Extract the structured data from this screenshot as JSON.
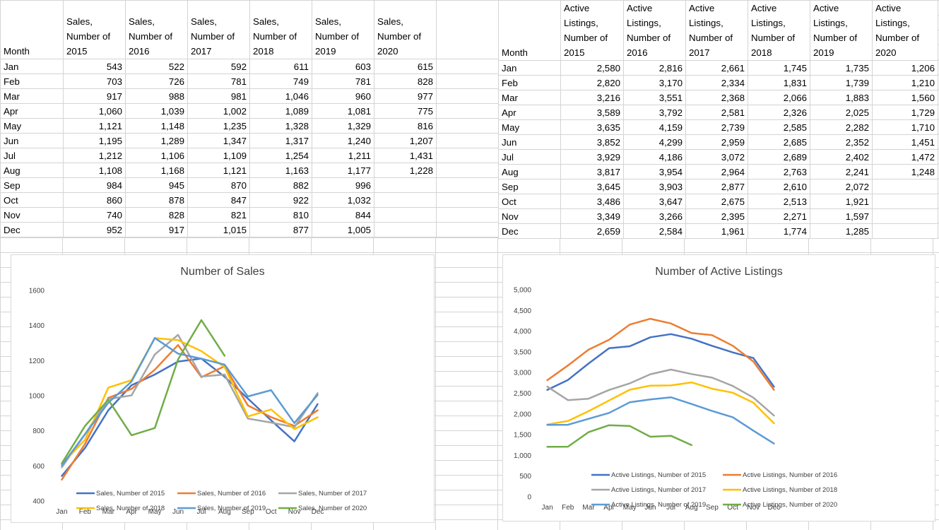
{
  "sales_table": {
    "headers": [
      "Month",
      "Sales, Number of 2015",
      "Sales, Number of 2016",
      "Sales, Number of 2017",
      "Sales, Number of 2018",
      "Sales, Number of 2019",
      "Sales, Number of 2020",
      ""
    ],
    "rows": [
      [
        "Jan",
        "543",
        "522",
        "592",
        "611",
        "603",
        "615",
        ""
      ],
      [
        "Feb",
        "703",
        "726",
        "781",
        "749",
        "781",
        "828",
        ""
      ],
      [
        "Mar",
        "917",
        "988",
        "981",
        "1,046",
        "960",
        "977",
        ""
      ],
      [
        "Apr",
        "1,060",
        "1,039",
        "1,002",
        "1,089",
        "1,081",
        "775",
        ""
      ],
      [
        "May",
        "1,121",
        "1,148",
        "1,235",
        "1,328",
        "1,329",
        "816",
        ""
      ],
      [
        "Jun",
        "1,195",
        "1,289",
        "1,347",
        "1,317",
        "1,240",
        "1,207",
        ""
      ],
      [
        "Jul",
        "1,212",
        "1,106",
        "1,109",
        "1,254",
        "1,211",
        "1,431",
        ""
      ],
      [
        "Aug",
        "1,108",
        "1,168",
        "1,121",
        "1,163",
        "1,177",
        "1,228",
        ""
      ],
      [
        "Sep",
        "984",
        "945",
        "870",
        "882",
        "996",
        "",
        ""
      ],
      [
        "Oct",
        "860",
        "878",
        "847",
        "922",
        "1,032",
        "",
        ""
      ],
      [
        "Nov",
        "740",
        "828",
        "821",
        "810",
        "844",
        "",
        ""
      ],
      [
        "Dec",
        "952",
        "917",
        "1,015",
        "877",
        "1,005",
        "",
        ""
      ]
    ]
  },
  "listings_table": {
    "headers": [
      "Month",
      "Active Listings, Number of 2015",
      "Active Listings, Number of 2016",
      "Active Listings, Number of 2017",
      "Active Listings, Number of 2018",
      "Active Listings, Number of 2019",
      "Active Listings, Number of 2020"
    ],
    "rows": [
      [
        "Jan",
        "2,580",
        "2,816",
        "2,661",
        "1,745",
        "1,735",
        "1,206"
      ],
      [
        "Feb",
        "2,820",
        "3,170",
        "2,334",
        "1,831",
        "1,739",
        "1,210"
      ],
      [
        "Mar",
        "3,216",
        "3,551",
        "2,368",
        "2,066",
        "1,883",
        "1,560"
      ],
      [
        "Apr",
        "3,589",
        "3,792",
        "2,581",
        "2,326",
        "2,025",
        "1,729"
      ],
      [
        "May",
        "3,635",
        "4,159",
        "2,739",
        "2,585",
        "2,282",
        "1,710"
      ],
      [
        "Jun",
        "3,852",
        "4,299",
        "2,959",
        "2,685",
        "2,352",
        "1,451"
      ],
      [
        "Jul",
        "3,929",
        "4,186",
        "3,072",
        "2,689",
        "2,402",
        "1,472"
      ],
      [
        "Aug",
        "3,817",
        "3,954",
        "2,964",
        "2,763",
        "2,241",
        "1,248"
      ],
      [
        "Sep",
        "3,645",
        "3,903",
        "2,877",
        "2,610",
        "2,072",
        ""
      ],
      [
        "Oct",
        "3,486",
        "3,647",
        "2,675",
        "2,513",
        "1,921",
        ""
      ],
      [
        "Nov",
        "3,349",
        "3,266",
        "2,395",
        "2,271",
        "1,597",
        ""
      ],
      [
        "Dec",
        "2,659",
        "2,584",
        "1,961",
        "1,774",
        "1,285",
        ""
      ]
    ]
  },
  "colors": {
    "2015": "#4472c4",
    "2016": "#ed7d31",
    "2017": "#a5a5a5",
    "2018": "#ffc000",
    "2019": "#5b9bd5",
    "2020": "#70ad47"
  },
  "chart_data": [
    {
      "type": "line",
      "title": "Number of Sales",
      "categories": [
        "Jan",
        "Feb",
        "Mar",
        "Apr",
        "May",
        "Jun",
        "Jul",
        "Aug",
        "Sep",
        "Oct",
        "Nov",
        "Dec"
      ],
      "ylim": [
        400,
        1600
      ],
      "yticks": [
        "400",
        "600",
        "800",
        "1000",
        "1200",
        "1400",
        "1600"
      ],
      "ytick_values": [
        400,
        600,
        800,
        1000,
        1200,
        1400,
        1600
      ],
      "legend": "bottom",
      "grid": false,
      "series": [
        {
          "name": "Sales, Number of 2015",
          "color": "#4472c4",
          "values": [
            543,
            703,
            917,
            1060,
            1121,
            1195,
            1212,
            1108,
            984,
            860,
            740,
            952
          ]
        },
        {
          "name": "Sales, Number of 2016",
          "color": "#ed7d31",
          "values": [
            522,
            726,
            988,
            1039,
            1148,
            1289,
            1106,
            1168,
            945,
            878,
            828,
            917
          ]
        },
        {
          "name": "Sales, Number of 2017",
          "color": "#a5a5a5",
          "values": [
            592,
            781,
            981,
            1002,
            1235,
            1347,
            1109,
            1121,
            870,
            847,
            821,
            1015
          ]
        },
        {
          "name": "Sales, Number of 2018",
          "color": "#ffc000",
          "values": [
            611,
            749,
            1046,
            1089,
            1328,
            1317,
            1254,
            1163,
            882,
            922,
            810,
            877
          ]
        },
        {
          "name": "Sales, Number of 2019",
          "color": "#5b9bd5",
          "values": [
            603,
            781,
            960,
            1081,
            1329,
            1240,
            1211,
            1177,
            996,
            1032,
            844,
            1005
          ]
        },
        {
          "name": "Sales, Number of 2020",
          "color": "#70ad47",
          "values": [
            615,
            828,
            977,
            775,
            816,
            1207,
            1431,
            1228,
            null,
            null,
            null,
            null
          ]
        }
      ]
    },
    {
      "type": "line",
      "title": "Number of Active Listings",
      "categories": [
        "Jan",
        "Feb",
        "Mar",
        "Apr",
        "May",
        "Jun",
        "Jul",
        "Aug",
        "Sep",
        "Oct",
        "Nov",
        "Dec"
      ],
      "ylim": [
        0,
        5000
      ],
      "yticks": [
        "0",
        "500",
        "1,000",
        "1,500",
        "2,000",
        "2,500",
        "3,000",
        "3,500",
        "4,000",
        "4,500",
        "5,000"
      ],
      "ytick_values": [
        0,
        500,
        1000,
        1500,
        2000,
        2500,
        3000,
        3500,
        4000,
        4500,
        5000
      ],
      "legend": "bottom-right",
      "grid": false,
      "series": [
        {
          "name": "Active Listings, Number of 2015",
          "color": "#4472c4",
          "values": [
            2580,
            2820,
            3216,
            3589,
            3635,
            3852,
            3929,
            3817,
            3645,
            3486,
            3349,
            2659
          ]
        },
        {
          "name": "Active Listings, Number of 2016",
          "color": "#ed7d31",
          "values": [
            2816,
            3170,
            3551,
            3792,
            4159,
            4299,
            4186,
            3954,
            3903,
            3647,
            3266,
            2584
          ]
        },
        {
          "name": "Active Listings, Number of 2017",
          "color": "#a5a5a5",
          "values": [
            2661,
            2334,
            2368,
            2581,
            2739,
            2959,
            3072,
            2964,
            2877,
            2675,
            2395,
            1961
          ]
        },
        {
          "name": "Active Listings, Number of 2018",
          "color": "#ffc000",
          "values": [
            1745,
            1831,
            2066,
            2326,
            2585,
            2685,
            2689,
            2763,
            2610,
            2513,
            2271,
            1774
          ]
        },
        {
          "name": "Active Listings, Number of 2019",
          "color": "#5b9bd5",
          "values": [
            1735,
            1739,
            1883,
            2025,
            2282,
            2352,
            2402,
            2241,
            2072,
            1921,
            1597,
            1285
          ]
        },
        {
          "name": "Active Listings, Number of 2020",
          "color": "#70ad47",
          "values": [
            1206,
            1210,
            1560,
            1729,
            1710,
            1451,
            1472,
            1248,
            null,
            null,
            null,
            null
          ]
        }
      ]
    }
  ]
}
